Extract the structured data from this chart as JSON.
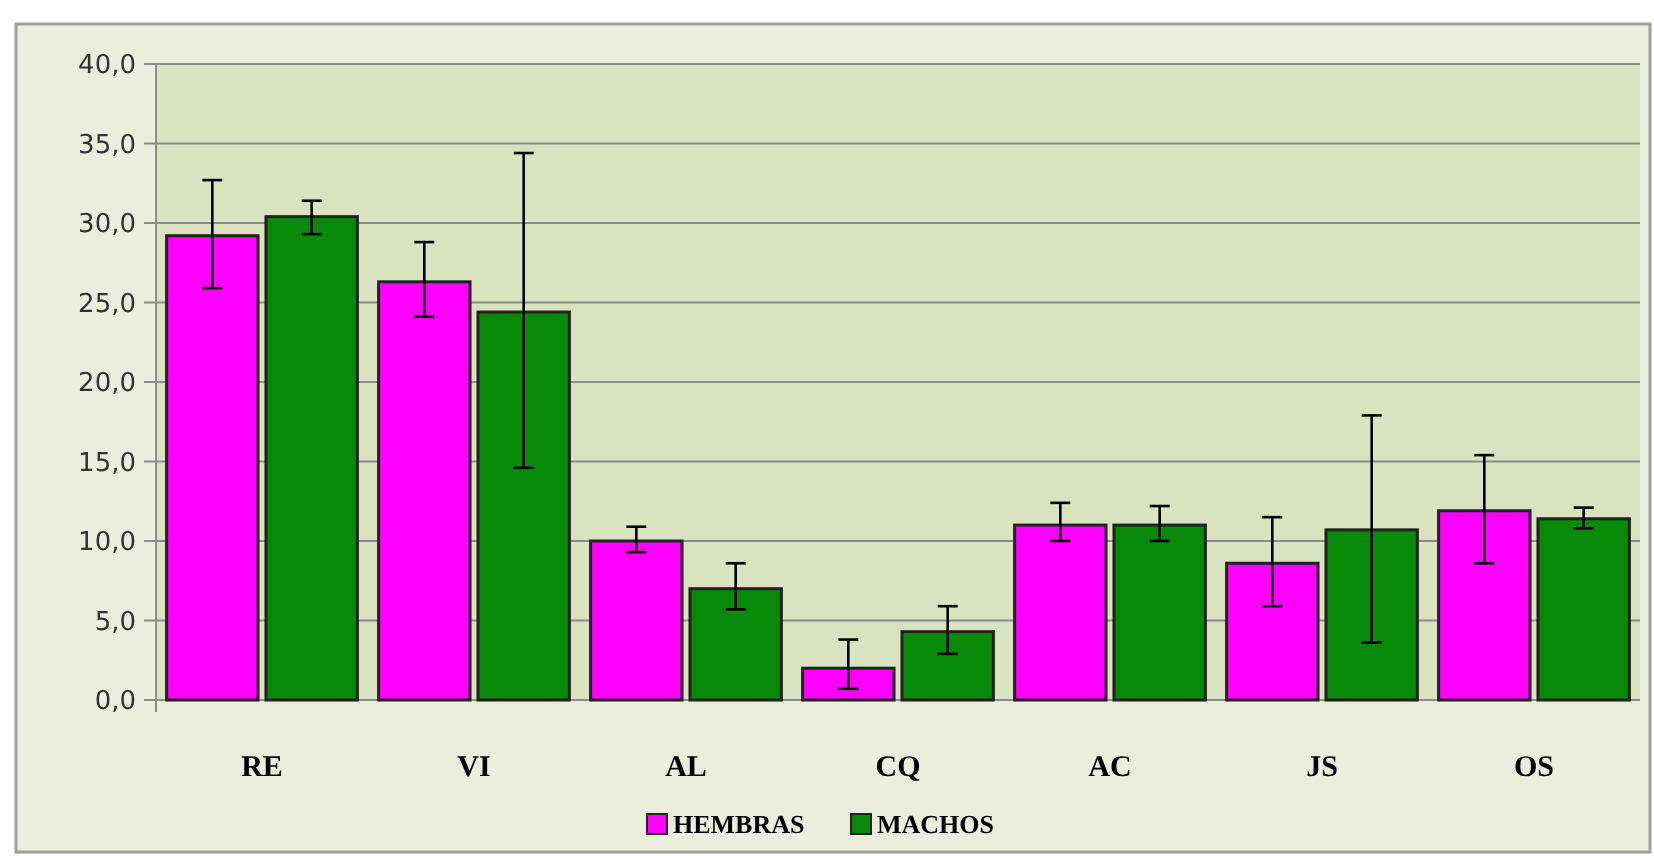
{
  "chart_data": {
    "type": "bar",
    "categories": [
      "RE",
      "VI",
      "AL",
      "CQ",
      "AC",
      "JS",
      "OS"
    ],
    "series": [
      {
        "name": "HEMBRAS",
        "color": "#ff00ff",
        "values": [
          29.2,
          26.3,
          10.0,
          2.0,
          11.0,
          8.6,
          11.9
        ],
        "errors": [
          [
            25.9,
            32.7
          ],
          [
            24.1,
            28.8
          ],
          [
            9.3,
            10.9
          ],
          [
            0.7,
            3.8
          ],
          [
            10.0,
            12.4
          ],
          [
            5.9,
            11.5
          ],
          [
            8.6,
            15.4
          ]
        ]
      },
      {
        "name": "MACHOS",
        "color": "#078a07",
        "values": [
          30.4,
          24.4,
          7.0,
          4.3,
          11.0,
          10.7,
          11.4
        ],
        "errors": [
          [
            29.3,
            31.4
          ],
          [
            14.6,
            34.4
          ],
          [
            5.7,
            8.6
          ],
          [
            2.9,
            5.9
          ],
          [
            10.0,
            12.2
          ],
          [
            3.6,
            17.9
          ],
          [
            10.8,
            12.1
          ]
        ]
      }
    ],
    "ylim": [
      0,
      40
    ],
    "yticks": [
      {
        "value": 0,
        "label": "0,0"
      },
      {
        "value": 5,
        "label": "5,0"
      },
      {
        "value": 10,
        "label": "10,0"
      },
      {
        "value": 15,
        "label": "15,0"
      },
      {
        "value": 20,
        "label": "20,0"
      },
      {
        "value": 25,
        "label": "25,0"
      },
      {
        "value": 30,
        "label": "30,0"
      },
      {
        "value": 35,
        "label": "35,0"
      },
      {
        "value": 40,
        "label": "40,0"
      }
    ],
    "grid": "y",
    "legend": "bottom"
  }
}
